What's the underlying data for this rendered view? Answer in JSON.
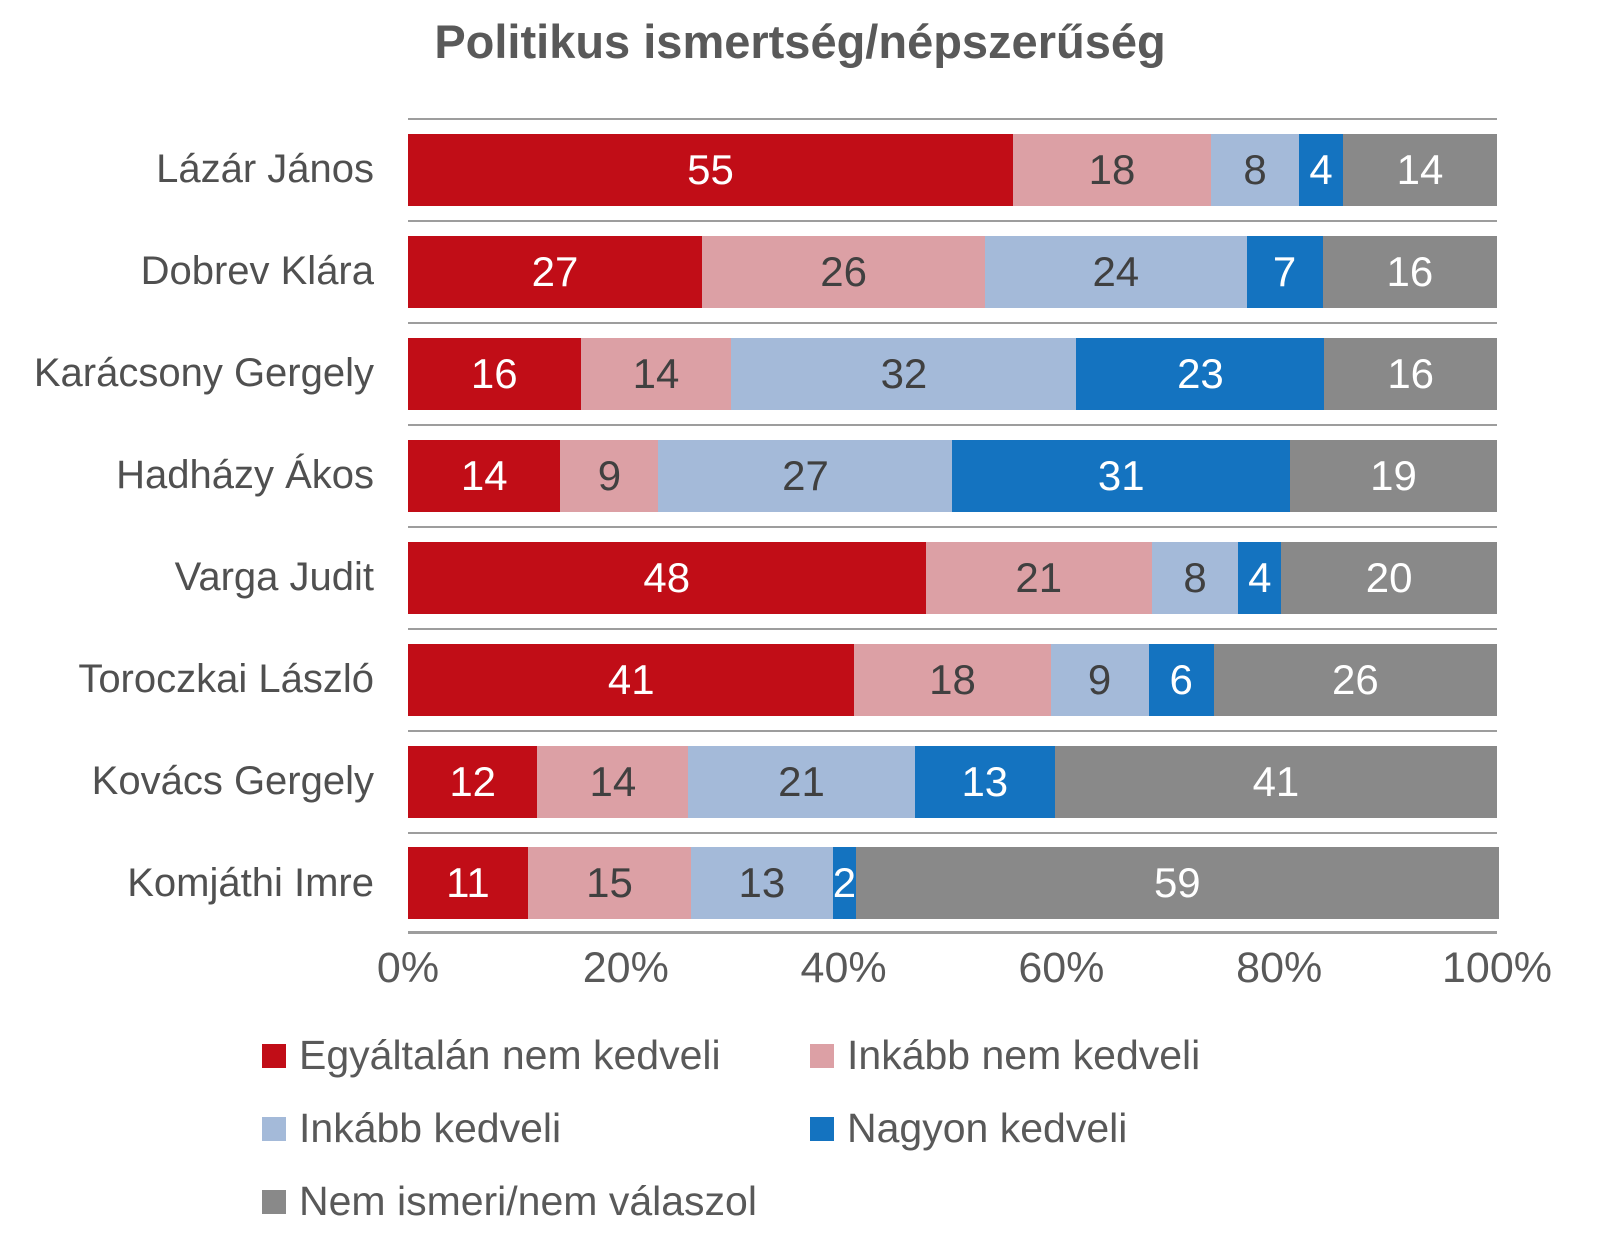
{
  "title": "Politikus ismertség/népszerűség",
  "colors": {
    "grid_line": "#9d9d9d",
    "axis_text": "#595959",
    "category_text": "#505050"
  },
  "chart_data": {
    "type": "bar",
    "orientation": "horizontal",
    "stacked": true,
    "title": "Politikus ismertség/népszerűség",
    "categories": [
      "Lázár János",
      "Dobrev Klára",
      "Karácsony Gergely",
      "Hadházy Ákos",
      "Varga Judit",
      "Toroczkai László",
      "Kovács Gergely",
      "Komjáthi Imre"
    ],
    "series": [
      {
        "name": "Egyáltalán nem kedveli",
        "color": "#C10D17",
        "text_color": "#FFFFFF",
        "values": [
          55,
          27,
          16,
          14,
          48,
          41,
          12,
          11
        ]
      },
      {
        "name": "Inkább nem kedveli",
        "color": "#DCA0A5",
        "text_color": "#404040",
        "values": [
          18,
          26,
          14,
          9,
          21,
          18,
          14,
          15
        ]
      },
      {
        "name": "Inkább kedveli",
        "color": "#A4BAD9",
        "text_color": "#404040",
        "values": [
          8,
          24,
          32,
          27,
          8,
          9,
          21,
          13
        ]
      },
      {
        "name": "Nagyon kedveli",
        "color": "#1473C0",
        "text_color": "#FFFFFF",
        "values": [
          4,
          7,
          23,
          31,
          4,
          6,
          13,
          2
        ]
      },
      {
        "name": "Nem ismeri/nem válaszol",
        "color": "#898989",
        "text_color": "#FFFFFF",
        "values": [
          14,
          16,
          16,
          19,
          20,
          26,
          41,
          59
        ]
      }
    ],
    "x_axis": {
      "ticks": [
        "0%",
        "20%",
        "40%",
        "60%",
        "80%",
        "100%"
      ],
      "range": [
        0,
        100
      ]
    },
    "legend": {
      "position": "bottom",
      "columns": 2
    },
    "grid": "category-separators-only"
  }
}
